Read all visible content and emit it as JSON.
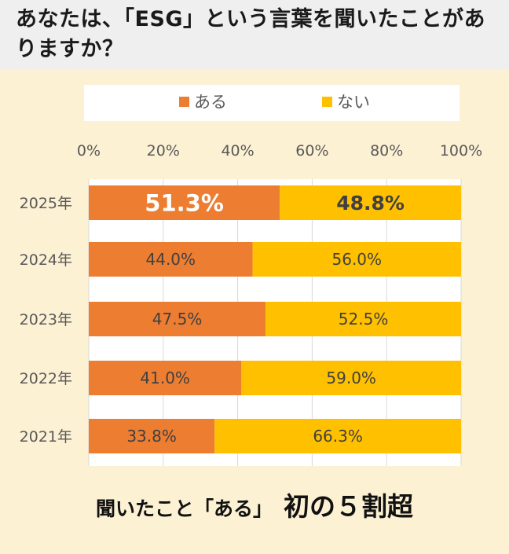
{
  "header": {
    "title": "あなたは、「ESG」という言葉を聞いたことがありますか？"
  },
  "footer": {
    "lead": "聞いたこと「ある」",
    "headline": "初の５割超"
  },
  "colors": {
    "series_aru": "#ed7d31",
    "series_nai": "#ffc000",
    "background": "#fdf1d4",
    "header_bg": "#efefef"
  },
  "chart_data": {
    "type": "bar",
    "orientation": "horizontal",
    "stacked": true,
    "title": "",
    "xlabel": "",
    "ylabel": "",
    "xlim": [
      0,
      100
    ],
    "x_ticks": [
      "0%",
      "20%",
      "40%",
      "60%",
      "80%",
      "100%"
    ],
    "categories": [
      "2025年",
      "2024年",
      "2023年",
      "2022年",
      "2021年"
    ],
    "series": [
      {
        "name": "ある",
        "values": [
          51.3,
          44.0,
          47.5,
          41.0,
          33.8
        ],
        "labels": [
          "51.3%",
          "44.0%",
          "47.5%",
          "41.0%",
          "33.8%"
        ]
      },
      {
        "name": "ない",
        "values": [
          48.8,
          56.0,
          52.5,
          59.0,
          66.3
        ],
        "labels": [
          "48.8%",
          "56.0%",
          "52.5%",
          "59.0%",
          "66.3%"
        ]
      }
    ],
    "legend_position": "top",
    "grid": true,
    "highlight_category": "2025年"
  }
}
